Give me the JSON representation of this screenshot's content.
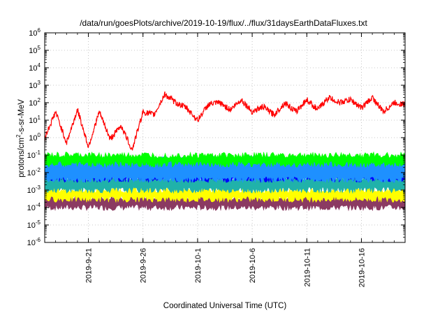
{
  "chart_data": {
    "type": "line",
    "title": "/data/run/goesPlots/archive/2019-10-19/flux/../flux/31daysEarthDataFluxes.txt",
    "xlabel": "Coordinated Universal Time (UTC)",
    "ylabel": {
      "base": "protons/cm",
      "sup": "2",
      "rest": "-s-sr-MeV"
    },
    "yscale": "log",
    "ylim_exp": [
      -6,
      6
    ],
    "ytick_exponents": [
      6,
      5,
      4,
      3,
      2,
      1,
      0,
      -1,
      -2,
      -3,
      -4,
      -5,
      -6
    ],
    "ytick_base": "10",
    "xlim": [
      "2019-09-17",
      "2019-10-20"
    ],
    "xticks": [
      {
        "date": "2019-09-21",
        "label": "2019-9-21"
      },
      {
        "date": "2019-09-26",
        "label": "2019-9-26"
      },
      {
        "date": "2019-10-01",
        "label": "2019-10-1"
      },
      {
        "date": "2019-10-06",
        "label": "2019-10-6"
      },
      {
        "date": "2019-10-11",
        "label": "2019-10-11"
      },
      {
        "date": "2019-10-16",
        "label": "2019-10-16"
      }
    ],
    "grid": true,
    "legend": "none",
    "series": [
      {
        "color": "#ff0000",
        "x": [
          "2019-09-17",
          "2019-09-18",
          "2019-09-19",
          "2019-09-20",
          "2019-09-21",
          "2019-09-22",
          "2019-09-23",
          "2019-09-24",
          "2019-09-25",
          "2019-09-26",
          "2019-09-27",
          "2019-09-28",
          "2019-09-29",
          "2019-09-30",
          "2019-10-01",
          "2019-10-02",
          "2019-10-03",
          "2019-10-04",
          "2019-10-05",
          "2019-10-06",
          "2019-10-07",
          "2019-10-08",
          "2019-10-09",
          "2019-10-10",
          "2019-10-11",
          "2019-10-12",
          "2019-10-13",
          "2019-10-14",
          "2019-10-15",
          "2019-10-16",
          "2019-10-17",
          "2019-10-18",
          "2019-10-19",
          "2019-10-20"
        ],
        "y": [
          1.0,
          30,
          0.5,
          40,
          0.3,
          30,
          0.8,
          5,
          0.2,
          30,
          20,
          300,
          100,
          50,
          10,
          80,
          100,
          40,
          150,
          30,
          60,
          20,
          100,
          30,
          150,
          40,
          200,
          100,
          150,
          50,
          200,
          30,
          100,
          80
        ]
      },
      {
        "color": "#00ff00",
        "band": [
          0.03,
          0.1
        ]
      },
      {
        "color": "#1e90ff",
        "band": [
          0.004,
          0.06
        ]
      },
      {
        "color": "#0000ff",
        "band": [
          0.004,
          0.02
        ]
      },
      {
        "color": "#20b2aa",
        "band": [
          0.001,
          0.005
        ]
      },
      {
        "color": "#ffff00",
        "band": [
          0.0003,
          0.001
        ]
      },
      {
        "color": "#8b3a62",
        "band": [
          0.0001,
          0.0004
        ]
      }
    ]
  }
}
